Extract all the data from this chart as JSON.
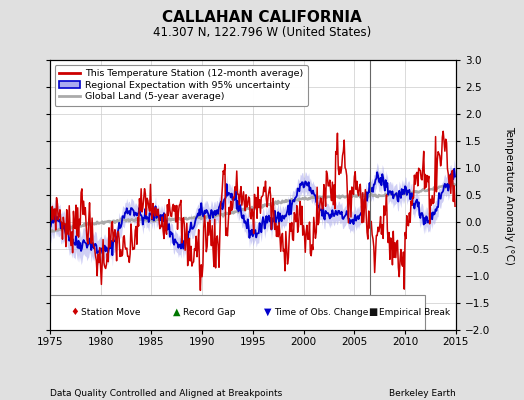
{
  "title": "CALLAHAN CALIFORNIA",
  "subtitle": "41.307 N, 122.796 W (United States)",
  "ylabel": "Temperature Anomaly (°C)",
  "xlabel_left": "Data Quality Controlled and Aligned at Breakpoints",
  "xlabel_right": "Berkeley Earth",
  "xlim": [
    1975,
    2015
  ],
  "ylim": [
    -2,
    3
  ],
  "yticks": [
    -2,
    -1.5,
    -1,
    -0.5,
    0,
    0.5,
    1,
    1.5,
    2,
    2.5,
    3
  ],
  "xticks": [
    1975,
    1980,
    1985,
    1990,
    1995,
    2000,
    2005,
    2010,
    2015
  ],
  "vertical_line_x": 2006.5,
  "empirical_break_x": 2006.5,
  "empirical_break_y": -1.55,
  "bg_color": "#e0e0e0",
  "plot_bg_color": "#ffffff",
  "grid_color": "#cccccc",
  "red_color": "#cc0000",
  "blue_color": "#0000cc",
  "blue_fill_color": "#aaaaee",
  "gray_color": "#aaaaaa",
  "legend_marker_colors": {
    "station_move": "#cc0000",
    "record_gap": "#007700",
    "time_obs": "#0000cc",
    "empirical": "#111111"
  }
}
